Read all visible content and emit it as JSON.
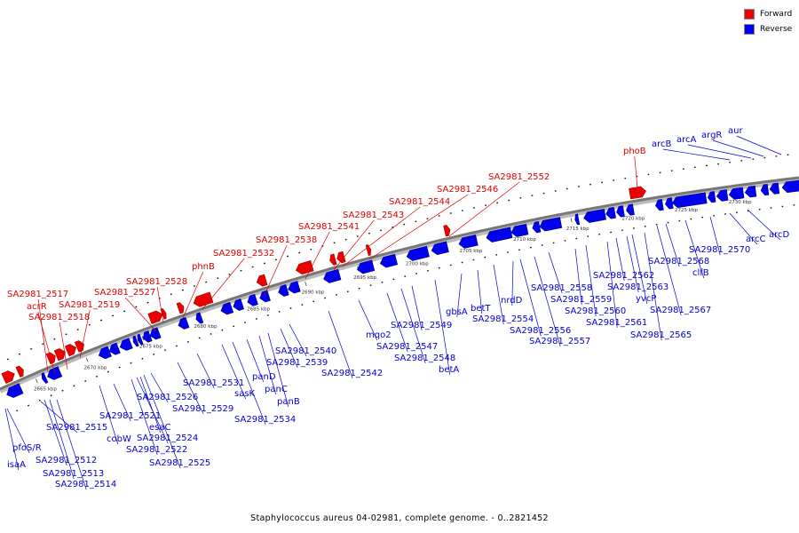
{
  "legend": {
    "forward": {
      "label": "Forward",
      "color": "#ee0000"
    },
    "reverse": {
      "label": "Reverse",
      "color": "#0000ee"
    }
  },
  "caption": "Staphylococcus aureus 04-02981, complete genome. - 0..2821452",
  "tick_labels": [
    "2665 kbp",
    "2670 kbp",
    "2675 kbp",
    "2680 kbp",
    "2685 kbp",
    "2690 kbp",
    "2695 kbp",
    "2700 kbp",
    "2705 kbp",
    "2710 kbp",
    "2715 kbp",
    "2720 kbp",
    "2725 kbp",
    "2730 kbp"
  ],
  "forward_genes": [
    "acrR",
    "SA2981_2517",
    "SA2981_2518",
    "SA2981_2519",
    "SA2981_2527",
    "SA2981_2528",
    "phnB",
    "SA2981_2532",
    "SA2981_2538",
    "SA2981_2541",
    "SA2981_2543",
    "SA2981_2544",
    "SA2981_2546",
    "SA2981_2552",
    "phoB"
  ],
  "reverse_genes": [
    "isaA",
    "pfoS/R",
    "SA2981_2512",
    "SA2981_2513",
    "SA2981_2514",
    "SA2981_2515",
    "cobW",
    "SA2981_2521",
    "esaC",
    "SA2981_2522",
    "SA2981_2524",
    "SA2981_2525",
    "SA2981_2526",
    "SA2981_2529",
    "SA2981_2531",
    "sasK",
    "SA2981_2534",
    "panD",
    "panC",
    "panB",
    "SA2981_2539",
    "SA2981_2540",
    "SA2981_2542",
    "mqo2",
    "SA2981_2547",
    "SA2981_2548",
    "SA2981_2549",
    "betA",
    "gbsA",
    "betT",
    "SA2981_2554",
    "nrdD",
    "SA2981_2556",
    "SA2981_2557",
    "SA2981_2558",
    "SA2981_2559",
    "SA2981_2560",
    "SA2981_2561",
    "SA2981_2562",
    "SA2981_2563",
    "yvcP",
    "SA2981_2565",
    "SA2981_2567",
    "SA2981_2568",
    "clfB",
    "SA2981_2570",
    "arcC",
    "arcD",
    "arcB",
    "arcA",
    "argR",
    "aur"
  ]
}
